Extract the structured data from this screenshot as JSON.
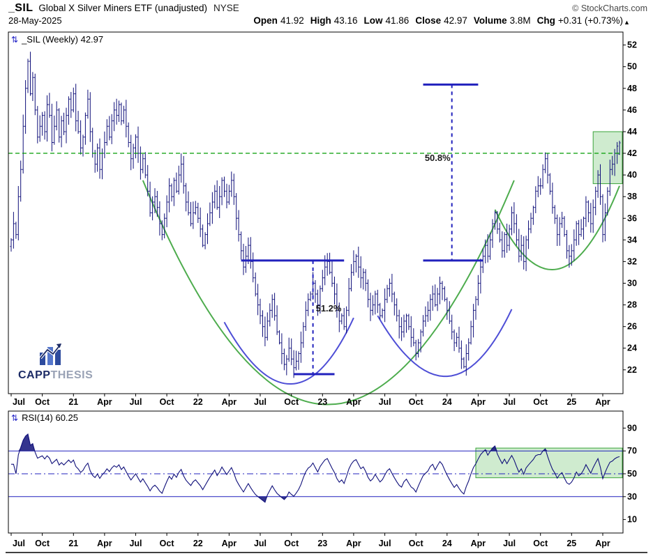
{
  "header": {
    "symbol": "_SIL",
    "name": "Global X Silver Miners ETF (unadjusted)",
    "exchange": "NYSE",
    "credit": "© StockCharts.com",
    "date": "28-May-2025",
    "quote": [
      {
        "k": "Open",
        "v": "41.92"
      },
      {
        "k": "High",
        "v": "43.16"
      },
      {
        "k": "Low",
        "v": "41.86"
      },
      {
        "k": "Close",
        "v": "42.97"
      },
      {
        "k": "Volume",
        "v": "3.8M"
      },
      {
        "k": "Chg",
        "v": "+0.31 (+0.73%)"
      }
    ]
  },
  "main_chart": {
    "label": "_SIL (Weekly) 42.97"
  },
  "logo": {
    "part1": "CAPP",
    "part2": "THESIS"
  },
  "icons": {
    "updown": "⇅",
    "scroll_up": "▲"
  },
  "chart_data": {
    "type": "ohlc",
    "title": "_SIL (Weekly) 42.97",
    "timeframe": "weekly",
    "x_range": [
      "Jul 2020",
      "May 2025"
    ],
    "ylim": [
      19.8,
      53.2
    ],
    "y_ticks": [
      52,
      50,
      48,
      46,
      44,
      42,
      40,
      38,
      36,
      34,
      32,
      30,
      28,
      26,
      24,
      22
    ],
    "x_labels": [
      {
        "t": "Jul",
        "i": 0
      },
      {
        "t": "Oct",
        "i": 13
      },
      {
        "t": "21",
        "i": 26
      },
      {
        "t": "Apr",
        "i": 39
      },
      {
        "t": "Jul",
        "i": 52
      },
      {
        "t": "Oct",
        "i": 65
      },
      {
        "t": "22",
        "i": 78
      },
      {
        "t": "Apr",
        "i": 91
      },
      {
        "t": "Jul",
        "i": 104
      },
      {
        "t": "Oct",
        "i": 117
      },
      {
        "t": "23",
        "i": 130
      },
      {
        "t": "Apr",
        "i": 143
      },
      {
        "t": "Jul",
        "i": 156
      },
      {
        "t": "Oct",
        "i": 169
      },
      {
        "t": "24",
        "i": 182
      },
      {
        "t": "Apr",
        "i": 195
      },
      {
        "t": "Jul",
        "i": 208
      },
      {
        "t": "Oct",
        "i": 221
      },
      {
        "t": "25",
        "i": 234
      },
      {
        "t": "Apr",
        "i": 247
      }
    ],
    "weekly_closes": [
      34.0,
      35.5,
      34.5,
      38.0,
      40.5,
      44.5,
      48.0,
      50.5,
      47.5,
      49.0,
      46.0,
      43.5,
      44.5,
      45.5,
      44.0,
      46.5,
      45.5,
      43.0,
      44.5,
      46.0,
      43.5,
      45.0,
      44.0,
      45.5,
      47.0,
      46.0,
      47.5,
      45.0,
      44.0,
      42.5,
      43.5,
      45.5,
      47.0,
      44.0,
      42.0,
      41.0,
      42.5,
      40.5,
      42.0,
      43.0,
      44.5,
      43.5,
      45.0,
      46.0,
      45.5,
      46.5,
      45.0,
      46.0,
      44.5,
      43.0,
      41.5,
      42.5,
      43.5,
      42.0,
      40.5,
      41.5,
      40.0,
      38.5,
      36.5,
      37.5,
      38.0,
      37.0,
      35.5,
      34.5,
      36.0,
      37.5,
      39.0,
      38.0,
      39.5,
      38.5,
      40.0,
      41.0,
      39.0,
      37.5,
      36.5,
      35.5,
      36.5,
      37.0,
      36.0,
      35.0,
      33.5,
      34.5,
      35.5,
      36.5,
      37.5,
      38.5,
      37.0,
      38.0,
      39.5,
      38.5,
      37.5,
      38.5,
      39.5,
      38.0,
      36.0,
      34.5,
      33.0,
      31.5,
      32.5,
      33.5,
      32.0,
      30.5,
      29.0,
      28.0,
      27.0,
      26.0,
      25.0,
      26.5,
      27.5,
      28.5,
      27.0,
      25.5,
      24.5,
      23.5,
      22.5,
      23.0,
      24.0,
      23.0,
      22.2,
      22.8,
      23.5,
      24.5,
      26.0,
      27.5,
      28.5,
      29.0,
      30.0,
      29.0,
      28.0,
      29.5,
      30.5,
      31.5,
      32.0,
      31.0,
      30.0,
      29.0,
      27.5,
      26.5,
      27.0,
      26.0,
      27.5,
      29.5,
      31.0,
      32.0,
      32.5,
      31.5,
      30.5,
      31.0,
      30.0,
      28.5,
      27.5,
      28.0,
      29.0,
      28.0,
      27.0,
      27.5,
      28.5,
      29.5,
      30.0,
      29.0,
      28.0,
      27.0,
      26.0,
      25.5,
      26.5,
      27.0,
      26.0,
      25.0,
      24.5,
      23.5,
      24.5,
      25.5,
      26.5,
      27.0,
      27.5,
      28.5,
      29.0,
      28.0,
      29.0,
      30.0,
      29.5,
      28.5,
      27.5,
      26.5,
      25.5,
      24.5,
      25.0,
      24.0,
      23.0,
      22.3,
      23.5,
      24.5,
      26.0,
      27.5,
      28.5,
      30.0,
      31.5,
      32.5,
      33.5,
      32.5,
      34.0,
      35.5,
      36.5,
      35.0,
      34.0,
      33.0,
      34.5,
      33.5,
      35.0,
      36.5,
      35.5,
      34.0,
      32.5,
      33.5,
      32.0,
      34.0,
      35.0,
      36.0,
      37.0,
      38.5,
      39.0,
      39.0,
      40.5,
      41.5,
      40.0,
      38.5,
      37.0,
      36.0,
      34.5,
      35.5,
      36.0,
      34.5,
      33.0,
      32.5,
      33.0,
      34.0,
      35.5,
      34.5,
      35.0,
      36.0,
      37.5,
      36.5,
      35.5,
      37.0,
      38.5,
      40.0,
      38.0,
      34.5,
      36.5,
      38.5,
      40.5,
      41.0,
      42.0,
      42.66,
      42.97
    ],
    "last_bar": {
      "open": 41.92,
      "high": 43.16,
      "low": 41.86,
      "close": 42.97
    },
    "overlays": {
      "resistance_line": {
        "price": 42.0
      },
      "neckline_segments": [
        {
          "price": 32.1,
          "i0": 96,
          "i1": 139
        },
        {
          "price": 32.1,
          "i0": 172,
          "i1": 197
        }
      ],
      "target_line": {
        "price": 48.35,
        "i0": 172,
        "i1": 195
      },
      "base_line": {
        "price": 21.6,
        "i0": 118,
        "i1": 135
      },
      "measure_lines": [
        {
          "i": 126,
          "p_top": 32.1,
          "p_bot": 21.7,
          "label": "51.2%",
          "label_p": 27.4,
          "side": "right"
        },
        {
          "i": 184,
          "p_top": 48.35,
          "p_bot": 32.15,
          "label": "50.8%",
          "label_p": 41.3,
          "side": "left"
        }
      ],
      "arcs": [
        {
          "color": "green",
          "i0": 55,
          "p0": 39.5,
          "ib": 132,
          "pb": 18.8,
          "i1": 210,
          "p1": 39.5
        },
        {
          "color": "blue",
          "i0": 89,
          "p0": 26.4,
          "ib": 118,
          "pb": 20.7,
          "i1": 143,
          "p1": 26.8
        },
        {
          "color": "blue",
          "i0": 153,
          "p0": 27.0,
          "ib": 183,
          "pb": 21.4,
          "i1": 209,
          "p1": 27.6
        },
        {
          "color": "green",
          "i0": 202,
          "p0": 36.8,
          "ib": 228,
          "pb": 31.3,
          "i1": 254,
          "p1": 39.0
        }
      ],
      "highlight_box": {
        "i0": 243,
        "i1": 255,
        "p0": 39.2,
        "p1": 44.0
      }
    },
    "colors": {
      "bar": "#10107a",
      "annotation_blue": "#2121bd",
      "arc_green": "#3aa33a",
      "arc_blue": "#3b3bd1",
      "resistance_green": "#009c00",
      "highlight_fill": "#9fd89f",
      "highlight_stroke": "#3aa33a"
    },
    "rsi_panel": {
      "type": "line",
      "label": "RSI(14) 60.25",
      "period": 14,
      "last_value": 60.25,
      "y_ticks": [
        90,
        70,
        50,
        30,
        10
      ],
      "upper": 70,
      "lower": 30,
      "mid": 50,
      "highlight_box": {
        "i0": 194,
        "i1": 255,
        "v0": 46.5,
        "v1": 72.5
      }
    }
  }
}
